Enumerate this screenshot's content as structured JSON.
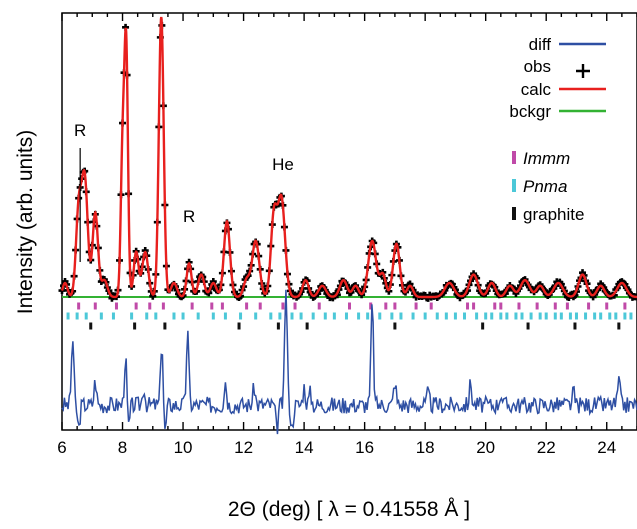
{
  "chart_data": {
    "type": "line",
    "xlabel": "2Θ (deg) [ λ = 0.41558 Å ]",
    "ylabel": "Intensity (arb. units)",
    "xlim": [
      6,
      25
    ],
    "x_ticks": [
      "6",
      "8",
      "10",
      "12",
      "14",
      "16",
      "18",
      "20",
      "22",
      "24"
    ],
    "grid": false,
    "legend_position": "top-right",
    "legend": [
      {
        "name": "diff",
        "style": "line",
        "color": "#2e4fa3"
      },
      {
        "name": "obs",
        "style": "plus",
        "color": "#000000"
      },
      {
        "name": "calc",
        "style": "line",
        "color": "#e8201e"
      },
      {
        "name": "bckgr",
        "style": "line",
        "color": "#33b233"
      }
    ],
    "phase_legend": [
      {
        "name": "Immm",
        "italic": true,
        "color": "#c04aa8"
      },
      {
        "name": "Pnma",
        "italic": true,
        "color": "#4cc8d8"
      },
      {
        "name": "graphite",
        "italic": false,
        "color": "#111111"
      }
    ],
    "annotations": [
      {
        "text": "R",
        "x": 6.6
      },
      {
        "text": "R",
        "x": 10.2
      },
      {
        "text": "He",
        "x": 13.5
      }
    ],
    "background_level": 0.02,
    "peaks": [
      {
        "x": 6.1,
        "h": 0.05,
        "w": 0.08
      },
      {
        "x": 6.55,
        "h": 0.3,
        "w": 0.09
      },
      {
        "x": 6.75,
        "h": 0.42,
        "w": 0.1
      },
      {
        "x": 7.1,
        "h": 0.3,
        "w": 0.09
      },
      {
        "x": 7.4,
        "h": 0.06,
        "w": 0.1
      },
      {
        "x": 8.0,
        "h": 0.5,
        "w": 0.06
      },
      {
        "x": 8.12,
        "h": 0.88,
        "w": 0.06
      },
      {
        "x": 8.45,
        "h": 0.16,
        "w": 0.08
      },
      {
        "x": 8.75,
        "h": 0.16,
        "w": 0.1
      },
      {
        "x": 9.28,
        "h": 1.0,
        "w": 0.08
      },
      {
        "x": 9.7,
        "h": 0.05,
        "w": 0.1
      },
      {
        "x": 10.2,
        "h": 0.12,
        "w": 0.08
      },
      {
        "x": 10.6,
        "h": 0.08,
        "w": 0.1
      },
      {
        "x": 11.0,
        "h": 0.05,
        "w": 0.1
      },
      {
        "x": 11.45,
        "h": 0.27,
        "w": 0.1
      },
      {
        "x": 12.1,
        "h": 0.06,
        "w": 0.1
      },
      {
        "x": 12.4,
        "h": 0.2,
        "w": 0.12
      },
      {
        "x": 13.0,
        "h": 0.28,
        "w": 0.1
      },
      {
        "x": 13.25,
        "h": 0.35,
        "w": 0.12
      },
      {
        "x": 14.05,
        "h": 0.06,
        "w": 0.1
      },
      {
        "x": 14.6,
        "h": 0.04,
        "w": 0.12
      },
      {
        "x": 15.3,
        "h": 0.06,
        "w": 0.12
      },
      {
        "x": 15.7,
        "h": 0.04,
        "w": 0.1
      },
      {
        "x": 16.25,
        "h": 0.2,
        "w": 0.13
      },
      {
        "x": 16.6,
        "h": 0.08,
        "w": 0.1
      },
      {
        "x": 17.05,
        "h": 0.19,
        "w": 0.11
      },
      {
        "x": 17.5,
        "h": 0.04,
        "w": 0.1
      },
      {
        "x": 18.8,
        "h": 0.05,
        "w": 0.15
      },
      {
        "x": 19.6,
        "h": 0.08,
        "w": 0.14
      },
      {
        "x": 20.2,
        "h": 0.05,
        "w": 0.12
      },
      {
        "x": 20.8,
        "h": 0.04,
        "w": 0.12
      },
      {
        "x": 21.3,
        "h": 0.06,
        "w": 0.15
      },
      {
        "x": 21.8,
        "h": 0.04,
        "w": 0.12
      },
      {
        "x": 22.4,
        "h": 0.05,
        "w": 0.15
      },
      {
        "x": 23.2,
        "h": 0.08,
        "w": 0.13
      },
      {
        "x": 23.8,
        "h": 0.04,
        "w": 0.12
      },
      {
        "x": 24.5,
        "h": 0.05,
        "w": 0.15
      }
    ],
    "diff_spikes": [
      {
        "x": 6.35,
        "h": 0.55
      },
      {
        "x": 6.55,
        "h": -0.2
      },
      {
        "x": 7.1,
        "h": 0.2
      },
      {
        "x": 8.1,
        "h": 0.4
      },
      {
        "x": 8.2,
        "h": -0.2
      },
      {
        "x": 8.7,
        "h": 0.15
      },
      {
        "x": 9.3,
        "h": 0.55
      },
      {
        "x": 9.4,
        "h": -0.25
      },
      {
        "x": 10.15,
        "h": 0.6
      },
      {
        "x": 11.4,
        "h": 0.2
      },
      {
        "x": 12.35,
        "h": 0.15
      },
      {
        "x": 13.1,
        "h": -0.2
      },
      {
        "x": 13.4,
        "h": 1.0
      },
      {
        "x": 13.6,
        "h": -0.2
      },
      {
        "x": 14.0,
        "h": 0.15
      },
      {
        "x": 14.2,
        "h": 0.1
      },
      {
        "x": 16.25,
        "h": 0.85
      },
      {
        "x": 17.0,
        "h": 0.2
      },
      {
        "x": 18.1,
        "h": 0.1
      },
      {
        "x": 19.5,
        "h": 0.18
      },
      {
        "x": 20.5,
        "h": 0.1
      },
      {
        "x": 22.9,
        "h": 0.1
      },
      {
        "x": 24.4,
        "h": 0.2
      }
    ],
    "reflections": {
      "Immm": [
        6.55,
        7.1,
        7.8,
        8.45,
        8.9,
        9.35,
        10.3,
        10.95,
        11.3,
        12.1,
        12.55,
        13.3,
        13.7,
        14.5,
        15.5,
        16.2,
        16.7,
        17.0,
        17.7,
        18.2,
        19.4,
        19.6,
        20.3,
        20.5,
        21.1,
        21.7,
        22.3,
        22.7,
        23.4,
        24.0,
        24.6
      ],
      "Pnma": [
        6.2,
        6.5,
        6.8,
        7.3,
        7.7,
        8.3,
        8.8,
        9.1,
        9.7,
        10.0,
        10.5,
        11.0,
        11.4,
        11.9,
        12.4,
        12.9,
        13.2,
        13.6,
        13.9,
        14.3,
        14.7,
        15.0,
        15.4,
        15.8,
        16.1,
        16.5,
        16.9,
        17.2,
        17.6,
        18.0,
        18.4,
        18.7,
        19.0,
        19.3,
        19.7,
        20.0,
        20.2,
        20.5,
        20.7,
        21.0,
        21.2,
        21.5,
        21.8,
        22.0,
        22.3,
        22.5,
        22.8,
        23.0,
        23.3,
        23.6,
        23.8,
        24.1,
        24.3,
        24.6,
        24.8
      ],
      "graphite": [
        6.95,
        8.4,
        9.4,
        11.85,
        13.15,
        14.1,
        17.0,
        19.9,
        21.4,
        22.95,
        24.4
      ]
    }
  }
}
